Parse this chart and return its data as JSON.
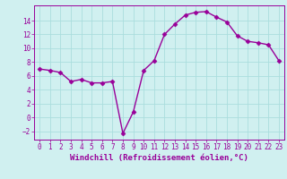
{
  "x": [
    0,
    1,
    2,
    3,
    4,
    5,
    6,
    7,
    8,
    9,
    10,
    11,
    12,
    13,
    14,
    15,
    16,
    17,
    18,
    19,
    20,
    21,
    22,
    23
  ],
  "y": [
    7.0,
    6.8,
    6.5,
    5.2,
    5.5,
    5.0,
    5.0,
    5.2,
    -2.3,
    0.8,
    6.8,
    8.2,
    12.0,
    13.5,
    14.8,
    15.2,
    15.3,
    14.5,
    13.8,
    11.8,
    11.0,
    10.8,
    10.5,
    8.2
  ],
  "line_color": "#990099",
  "marker": "D",
  "marker_size": 2.5,
  "bg_color": "#d0f0f0",
  "grid_color": "#aadddd",
  "xlabel": "Windchill (Refroidissement éolien,°C)",
  "xlim": [
    -0.5,
    23.5
  ],
  "ylim": [
    -3.2,
    16.2
  ],
  "yticks": [
    -2,
    0,
    2,
    4,
    6,
    8,
    10,
    12,
    14
  ],
  "xticks": [
    0,
    1,
    2,
    3,
    4,
    5,
    6,
    7,
    8,
    9,
    10,
    11,
    12,
    13,
    14,
    15,
    16,
    17,
    18,
    19,
    20,
    21,
    22,
    23
  ],
  "tick_color": "#990099",
  "tick_fontsize": 5.5,
  "xlabel_fontsize": 6.5,
  "linewidth": 1.0
}
